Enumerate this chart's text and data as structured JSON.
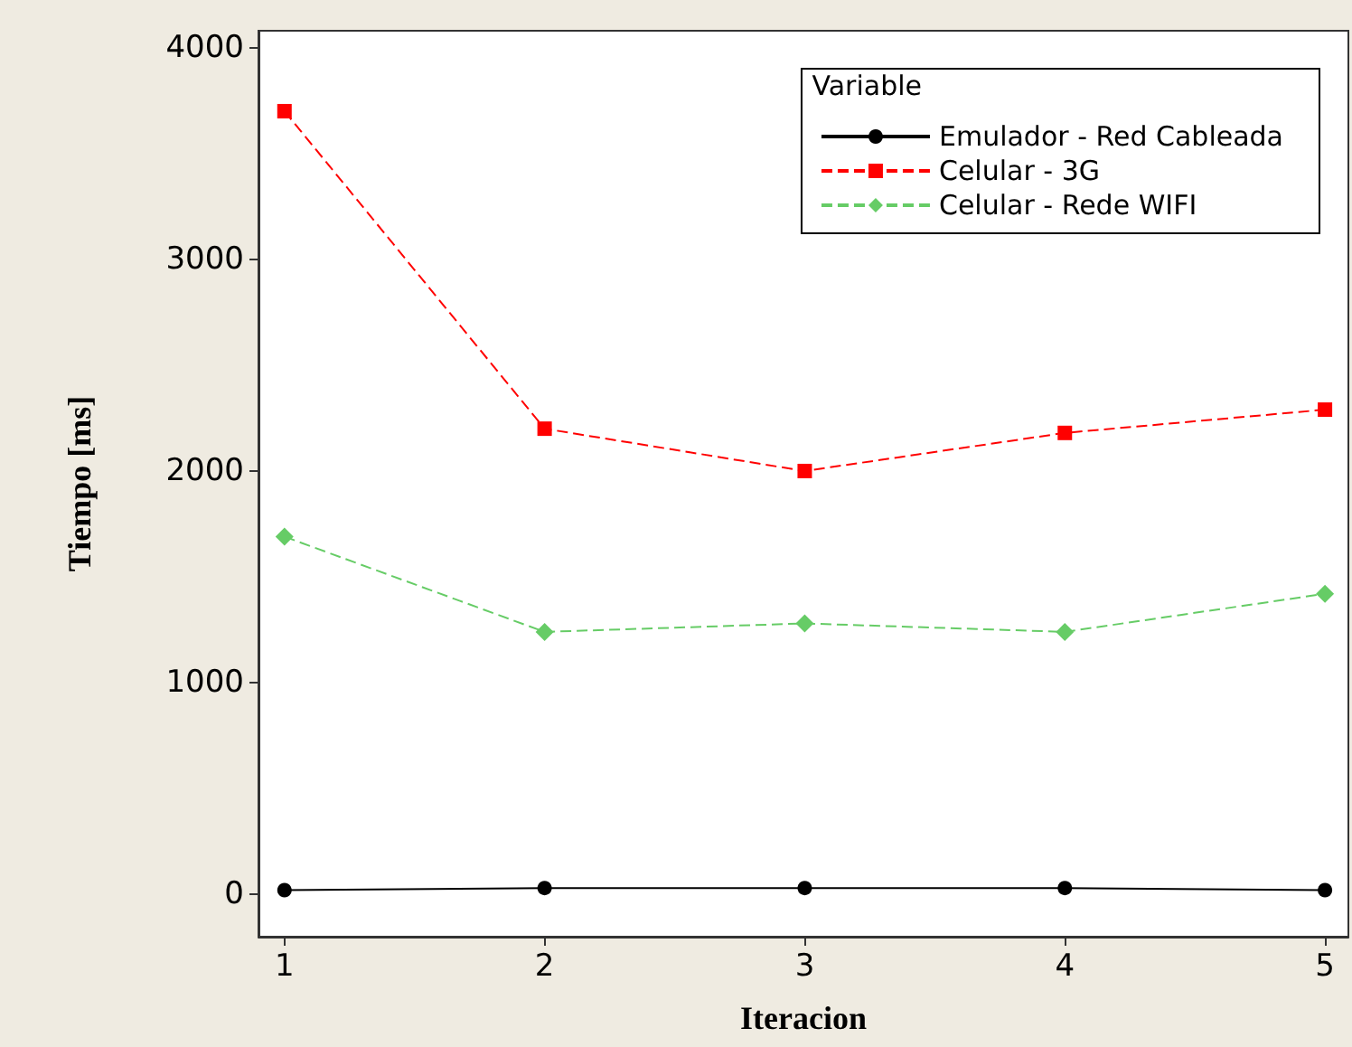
{
  "chart_data": {
    "type": "line",
    "xlabel": "Iteracion",
    "ylabel": "Tiempo [ms]",
    "legend_title": "Variable",
    "legend": "top right",
    "grid": false,
    "x": [
      1,
      2,
      3,
      4,
      5
    ],
    "xlim": [
      0.9,
      5.09
    ],
    "xticks": [
      1,
      2,
      3,
      4,
      5
    ],
    "ylim": [
      -200,
      4080
    ],
    "yticks": [
      0,
      1000,
      2000,
      3000,
      4000
    ],
    "series": [
      {
        "name": "Emulador - Red Cableada",
        "color": "#000000",
        "marker": "circle",
        "line_style": "solid",
        "values": [
          20,
          30,
          30,
          30,
          20
        ]
      },
      {
        "name": "Celular - 3G",
        "color": "#ff0000",
        "marker": "square",
        "line_style": "dashed",
        "values": [
          3700,
          2200,
          2000,
          2180,
          2290
        ]
      },
      {
        "name": "Celular - Rede WIFI",
        "color": "#66cc66",
        "marker": "diamond",
        "line_style": "dashed",
        "values": [
          1690,
          1240,
          1280,
          1240,
          1420
        ]
      }
    ]
  }
}
